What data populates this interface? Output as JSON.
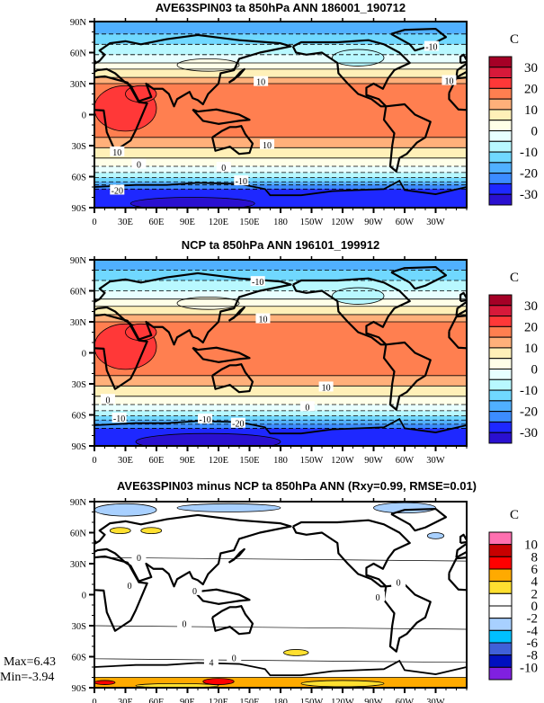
{
  "stats": {
    "max": "Max=6.43",
    "min": "Min=-3.94"
  },
  "chart_data": [
    {
      "type": "heatmap",
      "title": "AVE63SPIN03 ta 850hPa ANN 186001_190712",
      "unit": "C",
      "lat_ticks": [
        "90N",
        "60N",
        "30N",
        "0",
        "30S",
        "60S",
        "90S"
      ],
      "lon_ticks": [
        "0",
        "30E",
        "60E",
        "90E",
        "120E",
        "150E",
        "180",
        "150W",
        "120W",
        "90W",
        "60W",
        "30W"
      ],
      "colorbar_labels": [
        "30",
        "20",
        "10",
        "0",
        "-10",
        "-20",
        "-30"
      ],
      "colors": [
        "#a50026",
        "#d7193a",
        "#ff3838",
        "#ff7f50",
        "#ffb07a",
        "#fff0b8",
        "#ffffe8",
        "#e8ffff",
        "#b8f8ff",
        "#70d8ff",
        "#50b0ff",
        "#3c8cff",
        "#1e28ff",
        "#2a10d0"
      ],
      "background_level": 3,
      "zonal_bands": [
        [
          90,
          78,
          10
        ],
        [
          78,
          68,
          9
        ],
        [
          68,
          58,
          8
        ],
        [
          58,
          50,
          7
        ],
        [
          50,
          44,
          6
        ],
        [
          44,
          36,
          5
        ],
        [
          36,
          30,
          4
        ],
        [
          30,
          -22,
          3
        ],
        [
          -22,
          -32,
          4
        ],
        [
          -32,
          -42,
          5
        ],
        [
          -42,
          -50,
          6
        ],
        [
          -50,
          -56,
          7
        ],
        [
          -56,
          -61,
          8
        ],
        [
          -61,
          -65,
          9
        ],
        [
          -65,
          -68,
          10
        ],
        [
          -68,
          -72,
          11
        ],
        [
          -72,
          -90,
          12
        ]
      ],
      "patches": [
        [
          30,
          6,
          30,
          22,
          2
        ],
        [
          45,
          20,
          15,
          8,
          2
        ],
        [
          95,
          -86,
          60,
          6,
          13
        ],
        [
          255,
          55,
          25,
          8,
          8
        ],
        [
          110,
          48,
          30,
          6,
          6
        ]
      ],
      "contour_labels": [
        [
          "10",
          161,
          32
        ],
        [
          "10",
          167,
          -29
        ],
        [
          "10",
          22,
          -36
        ],
        [
          "0",
          43,
          -48
        ],
        [
          "0",
          125,
          -51
        ],
        [
          "-10",
          142,
          -64
        ],
        [
          "-20",
          22,
          -73
        ],
        [
          "10",
          343,
          33
        ],
        [
          "-10",
          326,
          66
        ]
      ]
    },
    {
      "type": "heatmap",
      "title": "NCP ta 850hPa ANN 196101_199912",
      "unit": "C",
      "lat_ticks": [
        "90N",
        "60N",
        "30N",
        "0",
        "30S",
        "60S",
        "90S"
      ],
      "lon_ticks": [
        "0",
        "30E",
        "60E",
        "90E",
        "120E",
        "150E",
        "180",
        "150W",
        "120W",
        "90W",
        "60W",
        "30W"
      ],
      "colorbar_labels": [
        "30",
        "20",
        "10",
        "0",
        "-10",
        "-20",
        "-30"
      ],
      "colors": [
        "#a50026",
        "#d7193a",
        "#ff3838",
        "#ff7f50",
        "#ffb07a",
        "#fff0b8",
        "#ffffe8",
        "#e8ffff",
        "#b8f8ff",
        "#70d8ff",
        "#50b0ff",
        "#3c8cff",
        "#1e28ff",
        "#2a10d0"
      ],
      "background_level": 3,
      "zonal_bands": [
        [
          90,
          80,
          10
        ],
        [
          80,
          70,
          9
        ],
        [
          70,
          60,
          8
        ],
        [
          60,
          52,
          7
        ],
        [
          52,
          45,
          6
        ],
        [
          45,
          37,
          5
        ],
        [
          37,
          30,
          4
        ],
        [
          30,
          -22,
          3
        ],
        [
          -22,
          -32,
          4
        ],
        [
          -32,
          -42,
          5
        ],
        [
          -42,
          -50,
          6
        ],
        [
          -50,
          -56,
          7
        ],
        [
          -56,
          -61,
          8
        ],
        [
          -61,
          -65,
          9
        ],
        [
          -65,
          -69,
          10
        ],
        [
          -69,
          -73,
          11
        ],
        [
          -73,
          -90,
          12
        ]
      ],
      "patches": [
        [
          30,
          6,
          30,
          22,
          2
        ],
        [
          45,
          20,
          15,
          8,
          2
        ],
        [
          110,
          -86,
          70,
          8,
          13
        ],
        [
          255,
          55,
          25,
          8,
          8
        ],
        [
          110,
          48,
          30,
          6,
          6
        ]
      ],
      "contour_labels": [
        [
          "10",
          163,
          33
        ],
        [
          "10",
          224,
          -33
        ],
        [
          "0",
          206,
          -52
        ],
        [
          "0",
          13,
          -45
        ],
        [
          "-10",
          24,
          -63
        ],
        [
          "-10",
          107,
          -64
        ],
        [
          "-20",
          139,
          -68
        ],
        [
          "-10",
          158,
          69
        ]
      ]
    },
    {
      "type": "heatmap",
      "title": "AVE63SPIN03 minus NCP ta 850hPa ANN (Rxy=0.99, RMSE=0.01)",
      "unit": "C",
      "lat_ticks": [
        "90N",
        "60N",
        "30N",
        "0",
        "30S",
        "60S",
        "90S"
      ],
      "lon_ticks": [
        "0",
        "30E",
        "60E",
        "90E",
        "120E",
        "150E",
        "180",
        "150W",
        "120W",
        "90W",
        "60W",
        "30W"
      ],
      "colorbar_labels": [
        "10",
        "8",
        "6",
        "4",
        "2",
        "0",
        "-2",
        "-4",
        "-6",
        "-8",
        "-10"
      ],
      "colors": [
        "#ff70b0",
        "#c80000",
        "#ff0000",
        "#ffaa00",
        "#ffe030",
        "#ffffff",
        "#ffffff",
        "#a8d0ff",
        "#00c0ff",
        "#4060d8",
        "#0010c0",
        "#8020e0"
      ],
      "background_level": 5,
      "zonal_bands": [
        [
          -80,
          -90,
          3
        ]
      ],
      "patches": [
        [
          30,
          82,
          30,
          6,
          7
        ],
        [
          130,
          84,
          50,
          4,
          7
        ],
        [
          300,
          84,
          30,
          5,
          7
        ],
        [
          25,
          62,
          10,
          3,
          4
        ],
        [
          55,
          62,
          10,
          3,
          4
        ],
        [
          195,
          -56,
          12,
          3,
          4
        ],
        [
          120,
          -84,
          15,
          3,
          2
        ],
        [
          10,
          -85,
          10,
          2,
          2
        ],
        [
          330,
          57,
          8,
          3,
          7
        ],
        [
          80,
          -88,
          40,
          2,
          4
        ],
        [
          240,
          -86,
          40,
          3,
          4
        ]
      ],
      "contour_labels": [
        [
          "0",
          43,
          36
        ],
        [
          "0",
          34,
          9
        ],
        [
          "0",
          97,
          4
        ],
        [
          "0",
          274,
          -2
        ],
        [
          "0",
          294,
          12
        ],
        [
          "0",
          87,
          -28
        ],
        [
          "4",
          113,
          -65
        ],
        [
          "0",
          135,
          -61
        ]
      ]
    }
  ]
}
